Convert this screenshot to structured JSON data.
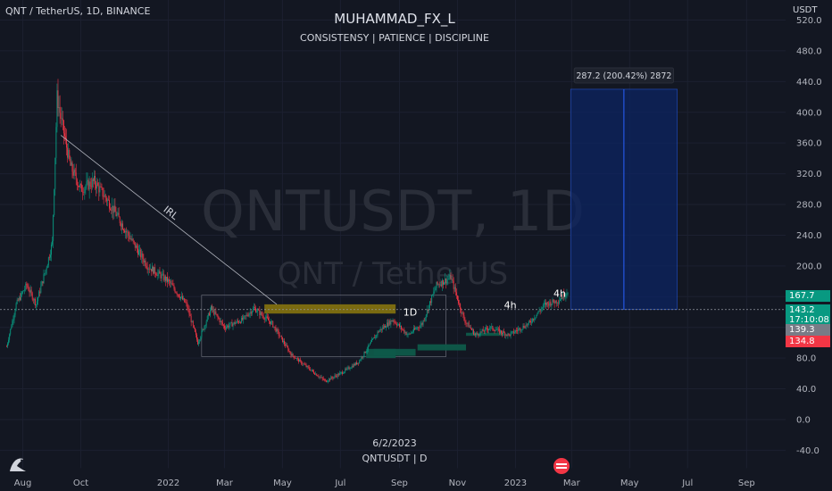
{
  "header": {
    "symbol_line": "QNT / TetherUS, 1D, BINANCE",
    "author": "MUHAMMAD_FX_L",
    "tagline": "CONSISTENSY | PATIENCE | DISCIPLINE",
    "currency": "USDT"
  },
  "watermark": {
    "main": "QNTUSDT, 1D",
    "sub": "QNT / TetherUS"
  },
  "footer": {
    "date": "6/2/2023",
    "symbol": "QNTUSDT | D"
  },
  "annotations": {
    "irl": "IRL",
    "tf_1d": "1D",
    "tf_4h_a": "4h",
    "tf_4h_b": "4h",
    "measure": "287.2 (200.42%) 2872"
  },
  "price_tags": [
    {
      "label": "167.7",
      "color": "#089981",
      "value": 167.7
    },
    {
      "label": "143.2",
      "color": "#089981",
      "value": 143.2
    },
    {
      "label": "17:10:08",
      "color": "#089981",
      "value": 143.2
    },
    {
      "label": "139.3",
      "color": "#787b86",
      "value": 139.3
    },
    {
      "label": "134.8",
      "color": "#f23645",
      "value": 134.8
    }
  ],
  "colors": {
    "background": "#131722",
    "up": "#089981",
    "down": "#f23645",
    "zone_bear": "#806f10",
    "zone_bull": "#0e5a4a",
    "measure_fill": "#0c2461",
    "measure_line": "#2962ff"
  },
  "chart_data": {
    "type": "candlestick",
    "y_ticks": [
      520.0,
      480.0,
      440.0,
      400.0,
      360.0,
      320.0,
      280.0,
      240.0,
      200.0,
      160.0,
      120.0,
      80.0,
      40.0,
      0.0,
      -40.0
    ],
    "ylim": [
      -40,
      520
    ],
    "x_labels": [
      "Aug",
      "Oct",
      "2022",
      "Mar",
      "May",
      "Jul",
      "Sep",
      "Nov",
      "2023",
      "Mar",
      "May",
      "Jul",
      "Sep"
    ],
    "x_label_dates": [
      "2021-08-01",
      "2021-10-01",
      "2022-01-01",
      "2022-03-01",
      "2022-05-01",
      "2022-07-01",
      "2022-09-01",
      "2022-11-01",
      "2023-01-01",
      "2023-03-01",
      "2023-05-01",
      "2023-07-01",
      "2023-09-01"
    ],
    "x_range": [
      "2021-07-08",
      "2023-10-12"
    ],
    "price_path": [
      [
        "2021-07-15",
        95
      ],
      [
        "2021-07-25",
        150
      ],
      [
        "2021-08-05",
        175
      ],
      [
        "2021-08-15",
        150
      ],
      [
        "2021-08-25",
        195
      ],
      [
        "2021-09-01",
        230
      ],
      [
        "2021-09-06",
        420
      ],
      [
        "2021-09-12",
        380
      ],
      [
        "2021-09-20",
        330
      ],
      [
        "2021-10-01",
        300
      ],
      [
        "2021-10-15",
        310
      ],
      [
        "2021-11-01",
        280
      ],
      [
        "2021-11-20",
        240
      ],
      [
        "2021-12-10",
        200
      ],
      [
        "2022-01-01",
        180
      ],
      [
        "2022-01-20",
        150
      ],
      [
        "2022-02-01",
        100
      ],
      [
        "2022-02-15",
        145
      ],
      [
        "2022-03-01",
        120
      ],
      [
        "2022-03-20",
        130
      ],
      [
        "2022-04-01",
        145
      ],
      [
        "2022-04-20",
        125
      ],
      [
        "2022-05-10",
        85
      ],
      [
        "2022-05-25",
        70
      ],
      [
        "2022-06-15",
        50
      ],
      [
        "2022-07-01",
        60
      ],
      [
        "2022-07-20",
        75
      ],
      [
        "2022-08-10",
        115
      ],
      [
        "2022-08-25",
        130
      ],
      [
        "2022-09-10",
        110
      ],
      [
        "2022-09-25",
        125
      ],
      [
        "2022-10-10",
        175
      ],
      [
        "2022-10-25",
        185
      ],
      [
        "2022-11-08",
        130
      ],
      [
        "2022-11-20",
        110
      ],
      [
        "2022-12-05",
        120
      ],
      [
        "2022-12-25",
        110
      ],
      [
        "2023-01-15",
        125
      ],
      [
        "2023-02-01",
        150
      ],
      [
        "2023-02-15",
        155
      ],
      [
        "2023-02-25",
        167.7
      ]
    ],
    "trendline": {
      "label": "IRL",
      "from": [
        "2021-09-10",
        370
      ],
      "to": [
        "2022-04-25",
        150
      ]
    },
    "range_box": {
      "from": "2022-02-05",
      "to": "2022-10-20",
      "top": 162,
      "bottom": 82
    },
    "zones": [
      {
        "label": "1D",
        "type": "bear",
        "from": "2022-04-12",
        "to": "2022-08-28",
        "top": 150,
        "bottom": 138
      },
      {
        "type": "bull",
        "from": "2022-07-28",
        "to": "2022-08-28",
        "top": 92,
        "bottom": 80
      },
      {
        "type": "bull",
        "from": "2022-08-05",
        "to": "2022-09-18",
        "top": 92,
        "bottom": 83
      },
      {
        "type": "bull",
        "from": "2022-09-20",
        "to": "2022-11-10",
        "top": 98,
        "bottom": 90
      },
      {
        "label": "4h",
        "type": "bull",
        "from": "2022-11-10",
        "to": "2022-12-20",
        "top": 113,
        "bottom": 109
      }
    ],
    "measure": {
      "label": "287.2 (200.42%) 2872",
      "from": "2023-02-28",
      "to": "2023-06-20",
      "top": 430,
      "bottom": 143.2
    },
    "last_price": 143.2
  }
}
